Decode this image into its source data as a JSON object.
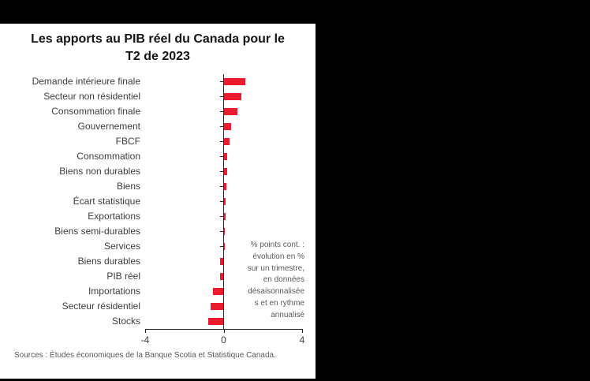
{
  "chart_data": {
    "type": "bar",
    "orientation": "horizontal",
    "title": "Les apports au PIB réel du Canada pour le T2 de 2023",
    "categories": [
      "Demande intérieure finale",
      "Secteur non résidentiel",
      "Consommation finale",
      "Gouvernement",
      "FBCF",
      "Consommation",
      "Biens non durables",
      "Biens",
      "Écart statistique",
      "Exportations",
      "Biens semi-durables",
      "Services",
      "Biens durables",
      "PIB réel",
      "Importations",
      "Secteur résidentiel",
      "Stocks"
    ],
    "values": [
      1.1,
      0.9,
      0.7,
      0.4,
      0.3,
      0.2,
      0.2,
      0.15,
      0.1,
      0.1,
      0.05,
      0.03,
      -0.2,
      -0.2,
      -0.55,
      -0.65,
      -0.8
    ],
    "xlim": [
      -4,
      4
    ],
    "x_ticks": [
      -4,
      0,
      4
    ],
    "x_tick_labels": [
      "-4",
      "0",
      "4"
    ],
    "bar_color": "#eb1c2d",
    "grid": false,
    "legend": "none",
    "annotation": "% points cont. :\névolution en %\nsur un trimestre,\nen données\ndésaisonnalisée\ns et en rythme\nannualisé",
    "sources": "Sources : Études économiques de la Banque Scotia et Statistique Canada."
  }
}
